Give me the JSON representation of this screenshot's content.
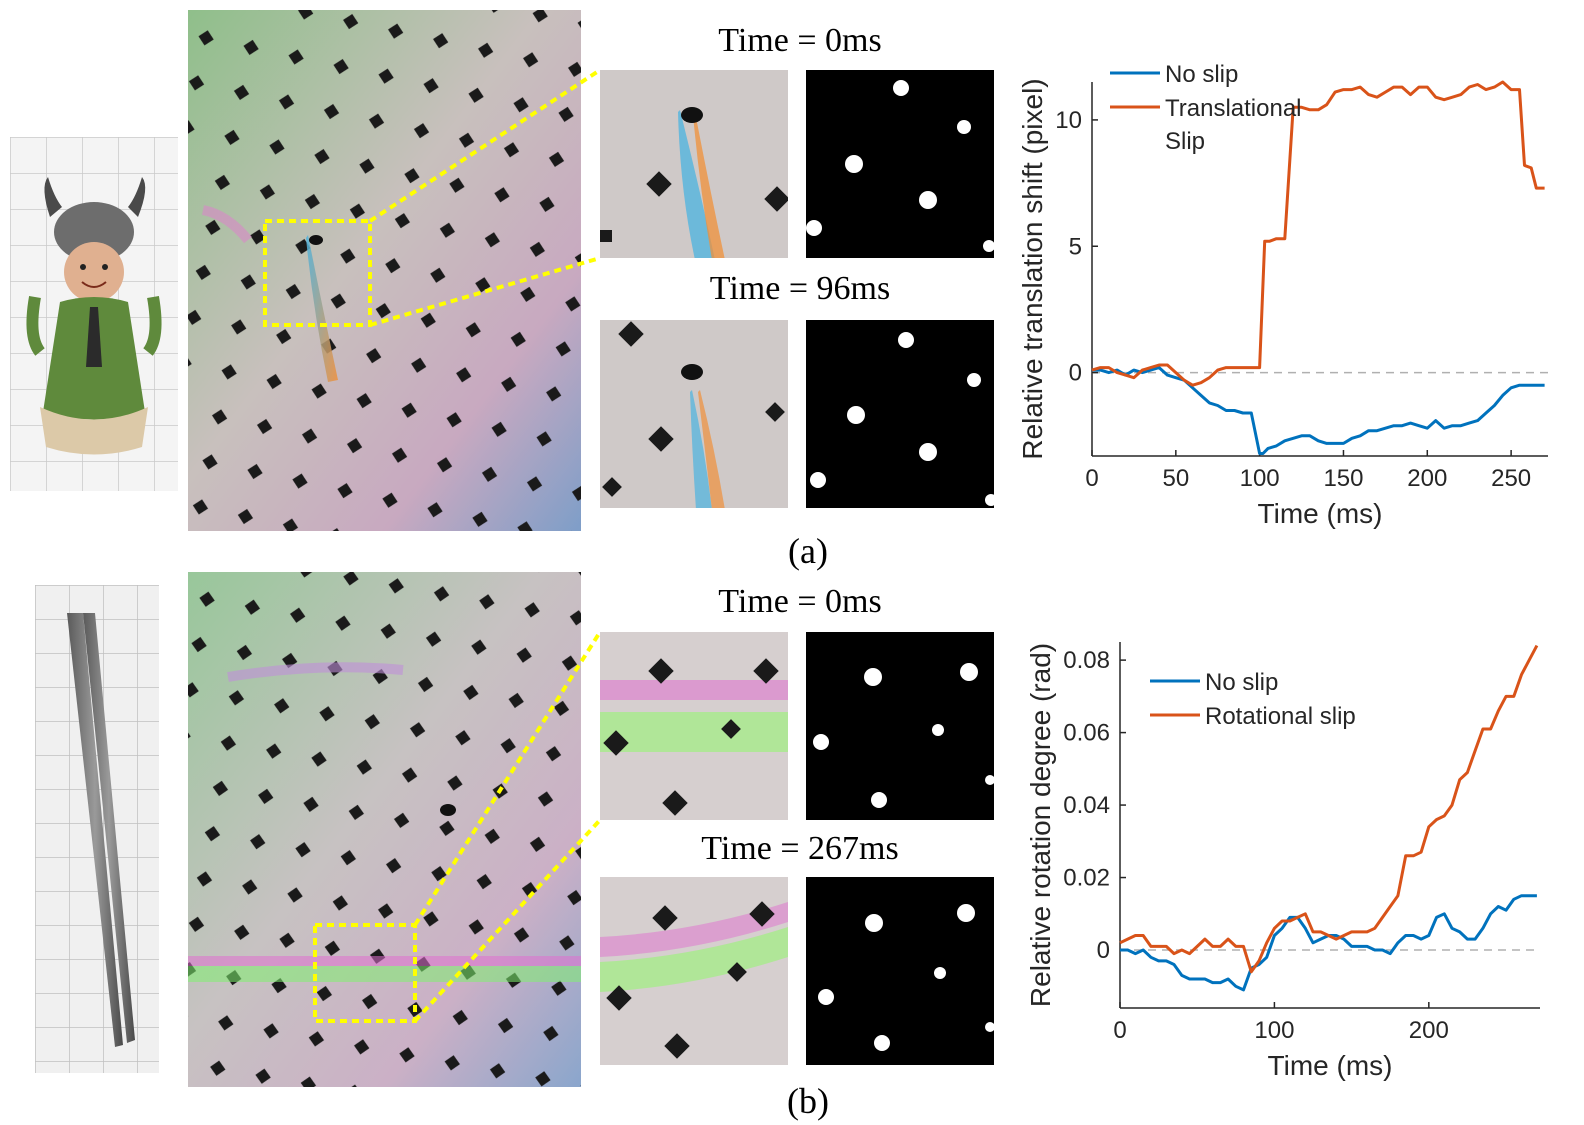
{
  "panels": [
    {
      "caption": "(a)",
      "object_image": "viking-figurine",
      "frames": [
        {
          "time_label": "Time = 0ms"
        },
        {
          "time_label": "Time = 96ms"
        }
      ]
    },
    {
      "caption": "(b)",
      "object_image": "tweezers",
      "frames": [
        {
          "time_label": "Time = 0ms"
        },
        {
          "time_label": "Time = 267ms"
        }
      ]
    }
  ],
  "colors": {
    "no_slip": "#0072BD",
    "slip": "#D95319",
    "zero_line": "#b0b0b0",
    "highlight_box": "#ffff00"
  },
  "chart_data": [
    {
      "type": "line",
      "title": "",
      "xlabel": "Time (ms)",
      "ylabel": "Relative translation shift (pixel)",
      "xlim": [
        0,
        272
      ],
      "ylim": [
        -3.3,
        11.5
      ],
      "xticks": [
        0,
        50,
        100,
        150,
        200,
        250
      ],
      "xtick_labels": [
        "0",
        "50",
        "100",
        "150",
        "200",
        "250"
      ],
      "yticks": [
        0,
        5,
        10
      ],
      "ytick_labels": [
        "0",
        "5",
        "10"
      ],
      "legend_position": "top-left",
      "zero_line": true,
      "series": [
        {
          "name": "No slip",
          "color_key": "no_slip",
          "x": [
            0,
            5,
            10,
            15,
            20,
            25,
            30,
            35,
            40,
            45,
            50,
            55,
            60,
            65,
            70,
            75,
            80,
            85,
            90,
            95,
            100,
            102,
            105,
            110,
            115,
            120,
            125,
            130,
            135,
            140,
            145,
            150,
            155,
            160,
            165,
            170,
            175,
            180,
            185,
            190,
            195,
            200,
            205,
            210,
            215,
            220,
            225,
            230,
            235,
            240,
            245,
            250,
            255,
            260,
            265,
            270
          ],
          "y": [
            0.1,
            0.1,
            0.0,
            0.1,
            -0.1,
            0.1,
            0.0,
            0.1,
            0.2,
            -0.1,
            -0.2,
            -0.3,
            -0.6,
            -0.9,
            -1.2,
            -1.3,
            -1.5,
            -1.5,
            -1.6,
            -1.6,
            -3.2,
            -3.2,
            -3.0,
            -2.9,
            -2.7,
            -2.6,
            -2.5,
            -2.5,
            -2.7,
            -2.8,
            -2.8,
            -2.8,
            -2.6,
            -2.5,
            -2.3,
            -2.3,
            -2.2,
            -2.1,
            -2.1,
            -2.0,
            -2.1,
            -2.2,
            -1.9,
            -2.2,
            -2.1,
            -2.1,
            -2.0,
            -1.9,
            -1.6,
            -1.3,
            -0.9,
            -0.6,
            -0.5,
            -0.5,
            -0.5,
            -0.5
          ]
        },
        {
          "name": "Translational Slip",
          "color_key": "slip",
          "x": [
            0,
            5,
            10,
            15,
            20,
            25,
            30,
            35,
            40,
            45,
            50,
            55,
            60,
            65,
            70,
            75,
            80,
            85,
            90,
            95,
            100,
            103,
            106,
            110,
            115,
            120,
            125,
            130,
            135,
            140,
            145,
            150,
            155,
            160,
            165,
            170,
            175,
            180,
            185,
            190,
            195,
            200,
            205,
            210,
            215,
            220,
            225,
            230,
            235,
            240,
            245,
            250,
            255,
            258,
            262,
            265,
            270
          ],
          "y": [
            0.1,
            0.2,
            0.2,
            0.0,
            -0.1,
            -0.2,
            0.1,
            0.2,
            0.3,
            0.3,
            0.0,
            -0.3,
            -0.5,
            -0.4,
            -0.2,
            0.1,
            0.2,
            0.2,
            0.2,
            0.2,
            0.2,
            5.2,
            5.2,
            5.3,
            5.3,
            10.5,
            10.5,
            10.4,
            10.4,
            10.6,
            11.1,
            11.2,
            11.2,
            11.3,
            11.0,
            10.9,
            11.1,
            11.3,
            11.3,
            11.0,
            11.3,
            11.3,
            10.9,
            10.8,
            10.9,
            11.0,
            11.3,
            11.4,
            11.2,
            11.3,
            11.5,
            11.2,
            11.2,
            8.2,
            8.1,
            7.3,
            7.3
          ]
        }
      ]
    },
    {
      "type": "line",
      "title": "",
      "xlabel": "Time (ms)",
      "ylabel": "Relative rotation degree (rad)",
      "xlim": [
        0,
        272
      ],
      "ylim": [
        -0.016,
        0.085
      ],
      "xticks": [
        0,
        100,
        200
      ],
      "xtick_labels": [
        "0",
        "100",
        "200"
      ],
      "yticks": [
        0,
        0.02,
        0.04,
        0.06,
        0.08
      ],
      "ytick_labels": [
        "0",
        "0.02",
        "0.04",
        "0.06",
        "0.08"
      ],
      "legend_position": "top-left",
      "zero_line": true,
      "series": [
        {
          "name": "No slip",
          "color_key": "no_slip",
          "x": [
            0,
            5,
            10,
            15,
            20,
            25,
            30,
            35,
            40,
            45,
            50,
            55,
            60,
            65,
            70,
            75,
            80,
            85,
            90,
            95,
            100,
            105,
            110,
            115,
            120,
            125,
            130,
            135,
            140,
            145,
            150,
            155,
            160,
            165,
            170,
            175,
            180,
            185,
            190,
            195,
            200,
            205,
            210,
            215,
            220,
            225,
            230,
            235,
            240,
            245,
            250,
            255,
            260,
            265,
            270
          ],
          "y": [
            0.0,
            0.0,
            -0.001,
            0.0,
            -0.002,
            -0.003,
            -0.003,
            -0.004,
            -0.007,
            -0.008,
            -0.008,
            -0.008,
            -0.009,
            -0.009,
            -0.008,
            -0.01,
            -0.011,
            -0.005,
            -0.004,
            -0.002,
            0.004,
            0.006,
            0.009,
            0.009,
            0.006,
            0.002,
            0.003,
            0.004,
            0.004,
            0.003,
            0.001,
            0.001,
            0.001,
            0.0,
            0.0,
            -0.001,
            0.002,
            0.004,
            0.004,
            0.003,
            0.004,
            0.009,
            0.01,
            0.006,
            0.005,
            0.003,
            0.003,
            0.006,
            0.01,
            0.012,
            0.011,
            0.014,
            0.015,
            0.015,
            0.015
          ]
        },
        {
          "name": "Rotational slip",
          "color_key": "slip",
          "x": [
            0,
            5,
            10,
            15,
            20,
            25,
            30,
            35,
            40,
            45,
            50,
            55,
            60,
            65,
            70,
            75,
            80,
            85,
            90,
            95,
            100,
            105,
            110,
            115,
            120,
            125,
            130,
            135,
            140,
            145,
            150,
            155,
            160,
            165,
            170,
            175,
            180,
            185,
            190,
            195,
            200,
            205,
            210,
            215,
            220,
            225,
            230,
            235,
            240,
            245,
            250,
            255,
            260,
            265,
            270
          ],
          "y": [
            0.002,
            0.003,
            0.004,
            0.004,
            0.001,
            0.001,
            0.001,
            -0.001,
            0.0,
            -0.001,
            0.001,
            0.003,
            0.001,
            0.001,
            0.003,
            0.001,
            0.001,
            -0.006,
            -0.003,
            0.002,
            0.006,
            0.008,
            0.008,
            0.009,
            0.01,
            0.005,
            0.005,
            0.004,
            0.003,
            0.004,
            0.005,
            0.005,
            0.005,
            0.006,
            0.009,
            0.012,
            0.015,
            0.026,
            0.026,
            0.027,
            0.034,
            0.036,
            0.037,
            0.04,
            0.047,
            0.049,
            0.055,
            0.061,
            0.061,
            0.066,
            0.07,
            0.07,
            0.076,
            0.08,
            0.084
          ]
        }
      ]
    }
  ]
}
